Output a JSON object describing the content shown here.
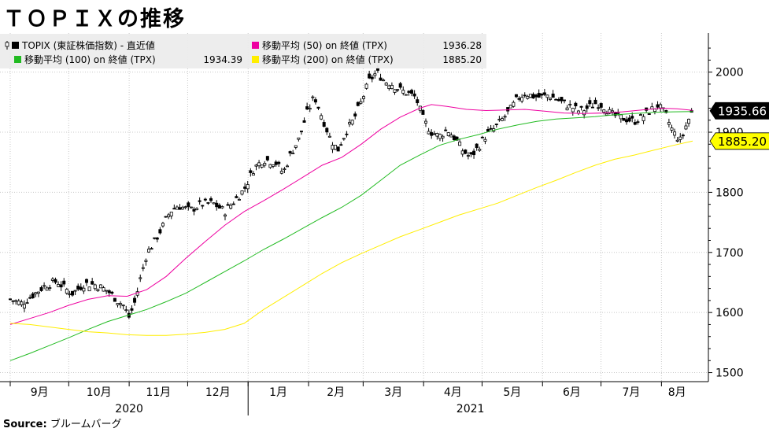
{
  "header": {
    "title": "ＴＯＰＩＸの推移"
  },
  "footer": {
    "source_label": "Source:",
    "source_value": "ブルームバーグ"
  },
  "chart_data": {
    "type": "line",
    "title": "ＴＯＰＩＸの推移",
    "xlabel": "",
    "ylabel": "",
    "ylim": [
      1485,
      2065
    ],
    "y_ticks": [
      1500,
      1600,
      1700,
      1800,
      1900,
      2000
    ],
    "x_domain_days": [
      0,
      350
    ],
    "month_ticks": [
      {
        "label": "9月",
        "day": 0
      },
      {
        "label": "10月",
        "day": 30
      },
      {
        "label": "11月",
        "day": 61
      },
      {
        "label": "12月",
        "day": 91
      },
      {
        "label": "1月",
        "day": 122
      },
      {
        "label": "2月",
        "day": 153
      },
      {
        "label": "3月",
        "day": 181
      },
      {
        "label": "4月",
        "day": 212
      },
      {
        "label": "5月",
        "day": 242
      },
      {
        "label": "6月",
        "day": 273
      },
      {
        "label": "7月",
        "day": 303
      },
      {
        "label": "8月",
        "day": 334
      }
    ],
    "years": [
      {
        "label": "2020",
        "day": 61
      },
      {
        "label": "2021",
        "day": 236
      }
    ],
    "legend": [
      {
        "key": "topix",
        "label": "TOPIX (東証株価指数) - 直近値",
        "value": "",
        "color": "#000000"
      },
      {
        "key": "ma50",
        "label": "移動平均 (50)  on 終値 (TPX)",
        "value": "1936.28",
        "color": "#ee00a0"
      },
      {
        "key": "ma100",
        "label": "移動平均 (100)  on 終値 (TPX)",
        "value": "1934.39",
        "color": "#22bb22"
      },
      {
        "key": "ma200",
        "label": "移動平均 (200)  on 終値 (TPX)",
        "value": "1885.20",
        "color": "#ffee00"
      }
    ],
    "last_value_tags": [
      {
        "key": "topix",
        "value": "1935.66",
        "bg": "#000000",
        "fg": "#ffffff"
      },
      {
        "key": "ma200",
        "value": "1885.20",
        "bg": "#ffff00",
        "fg": "#000000"
      }
    ],
    "series": [
      {
        "key": "topix",
        "name": "TOPIX (東証株価指数) - 直近値",
        "points": [
          [
            0,
            1622
          ],
          [
            6,
            1615
          ],
          [
            12,
            1630
          ],
          [
            18,
            1645
          ],
          [
            24,
            1652
          ],
          [
            28,
            1640
          ],
          [
            32,
            1632
          ],
          [
            38,
            1648
          ],
          [
            44,
            1646
          ],
          [
            50,
            1636
          ],
          [
            55,
            1620
          ],
          [
            58,
            1612
          ],
          [
            61,
            1592
          ],
          [
            64,
            1618
          ],
          [
            67,
            1660
          ],
          [
            70,
            1698
          ],
          [
            74,
            1718
          ],
          [
            78,
            1742
          ],
          [
            82,
            1768
          ],
          [
            86,
            1778
          ],
          [
            92,
            1770
          ],
          [
            98,
            1780
          ],
          [
            104,
            1782
          ],
          [
            110,
            1768
          ],
          [
            114,
            1782
          ],
          [
            120,
            1805
          ],
          [
            125,
            1840
          ],
          [
            130,
            1855
          ],
          [
            136,
            1850
          ],
          [
            140,
            1832
          ],
          [
            144,
            1865
          ],
          [
            148,
            1888
          ],
          [
            152,
            1930
          ],
          [
            156,
            1960
          ],
          [
            160,
            1925
          ],
          [
            164,
            1890
          ],
          [
            168,
            1870
          ],
          [
            172,
            1900
          ],
          [
            176,
            1920
          ],
          [
            180,
            1950
          ],
          [
            184,
            1985
          ],
          [
            188,
            2000
          ],
          [
            192,
            1985
          ],
          [
            196,
            1980
          ],
          [
            200,
            1970
          ],
          [
            204,
            1965
          ],
          [
            208,
            1958
          ],
          [
            212,
            1920
          ],
          [
            216,
            1900
          ],
          [
            220,
            1893
          ],
          [
            224,
            1905
          ],
          [
            228,
            1890
          ],
          [
            232,
            1870
          ],
          [
            236,
            1858
          ],
          [
            240,
            1875
          ],
          [
            244,
            1895
          ],
          [
            248,
            1905
          ],
          [
            252,
            1920
          ],
          [
            256,
            1935
          ],
          [
            260,
            1955
          ],
          [
            264,
            1965
          ],
          [
            268,
            1960
          ],
          [
            272,
            1958
          ],
          [
            276,
            1962
          ],
          [
            280,
            1955
          ],
          [
            284,
            1948
          ],
          [
            288,
            1942
          ],
          [
            292,
            1935
          ],
          [
            296,
            1940
          ],
          [
            300,
            1948
          ],
          [
            304,
            1945
          ],
          [
            308,
            1930
          ],
          [
            312,
            1925
          ],
          [
            316,
            1922
          ],
          [
            320,
            1918
          ],
          [
            324,
            1925
          ],
          [
            328,
            1935
          ],
          [
            332,
            1945
          ],
          [
            336,
            1930
          ],
          [
            340,
            1900
          ],
          [
            344,
            1885
          ],
          [
            347,
            1915
          ],
          [
            350,
            1935.66
          ]
        ]
      },
      {
        "key": "ma50",
        "name": "移動平均 (50)  on 終値 (TPX)",
        "points": [
          [
            0,
            1580
          ],
          [
            10,
            1590
          ],
          [
            20,
            1600
          ],
          [
            30,
            1612
          ],
          [
            40,
            1622
          ],
          [
            50,
            1628
          ],
          [
            60,
            1627
          ],
          [
            70,
            1638
          ],
          [
            80,
            1660
          ],
          [
            90,
            1690
          ],
          [
            100,
            1718
          ],
          [
            110,
            1745
          ],
          [
            120,
            1768
          ],
          [
            130,
            1786
          ],
          [
            140,
            1805
          ],
          [
            150,
            1825
          ],
          [
            160,
            1845
          ],
          [
            170,
            1858
          ],
          [
            180,
            1880
          ],
          [
            190,
            1905
          ],
          [
            200,
            1925
          ],
          [
            210,
            1940
          ],
          [
            216,
            1946
          ],
          [
            224,
            1943
          ],
          [
            234,
            1938
          ],
          [
            244,
            1936
          ],
          [
            254,
            1937
          ],
          [
            264,
            1938
          ],
          [
            274,
            1935
          ],
          [
            284,
            1932
          ],
          [
            294,
            1931
          ],
          [
            304,
            1932
          ],
          [
            314,
            1934
          ],
          [
            324,
            1937
          ],
          [
            334,
            1940
          ],
          [
            342,
            1939
          ],
          [
            350,
            1936.28
          ]
        ]
      },
      {
        "key": "ma100",
        "name": "移動平均 (100)  on 終値 (TPX)",
        "points": [
          [
            0,
            1520
          ],
          [
            10,
            1532
          ],
          [
            20,
            1545
          ],
          [
            30,
            1558
          ],
          [
            40,
            1572
          ],
          [
            50,
            1585
          ],
          [
            60,
            1595
          ],
          [
            70,
            1605
          ],
          [
            80,
            1618
          ],
          [
            90,
            1632
          ],
          [
            100,
            1650
          ],
          [
            110,
            1668
          ],
          [
            120,
            1686
          ],
          [
            130,
            1705
          ],
          [
            140,
            1722
          ],
          [
            150,
            1740
          ],
          [
            160,
            1758
          ],
          [
            170,
            1775
          ],
          [
            180,
            1795
          ],
          [
            190,
            1820
          ],
          [
            200,
            1845
          ],
          [
            210,
            1862
          ],
          [
            220,
            1878
          ],
          [
            230,
            1888
          ],
          [
            240,
            1896
          ],
          [
            250,
            1905
          ],
          [
            260,
            1912
          ],
          [
            270,
            1918
          ],
          [
            280,
            1922
          ],
          [
            290,
            1924
          ],
          [
            300,
            1926
          ],
          [
            310,
            1929
          ],
          [
            320,
            1931
          ],
          [
            330,
            1933
          ],
          [
            340,
            1934
          ],
          [
            350,
            1934.39
          ]
        ]
      },
      {
        "key": "ma200",
        "name": "移動平均 (200)  on 終値 (TPX)",
        "points": [
          [
            0,
            1582
          ],
          [
            10,
            1580
          ],
          [
            20,
            1576
          ],
          [
            30,
            1572
          ],
          [
            40,
            1568
          ],
          [
            50,
            1566
          ],
          [
            60,
            1563
          ],
          [
            70,
            1562
          ],
          [
            80,
            1562
          ],
          [
            90,
            1564
          ],
          [
            100,
            1567
          ],
          [
            110,
            1572
          ],
          [
            120,
            1582
          ],
          [
            130,
            1605
          ],
          [
            140,
            1625
          ],
          [
            150,
            1645
          ],
          [
            160,
            1665
          ],
          [
            170,
            1683
          ],
          [
            180,
            1698
          ],
          [
            190,
            1712
          ],
          [
            200,
            1726
          ],
          [
            210,
            1738
          ],
          [
            220,
            1750
          ],
          [
            230,
            1762
          ],
          [
            240,
            1772
          ],
          [
            250,
            1782
          ],
          [
            260,
            1795
          ],
          [
            270,
            1808
          ],
          [
            280,
            1820
          ],
          [
            290,
            1833
          ],
          [
            300,
            1845
          ],
          [
            310,
            1855
          ],
          [
            320,
            1862
          ],
          [
            330,
            1870
          ],
          [
            340,
            1878
          ],
          [
            350,
            1885.2
          ]
        ]
      }
    ]
  }
}
